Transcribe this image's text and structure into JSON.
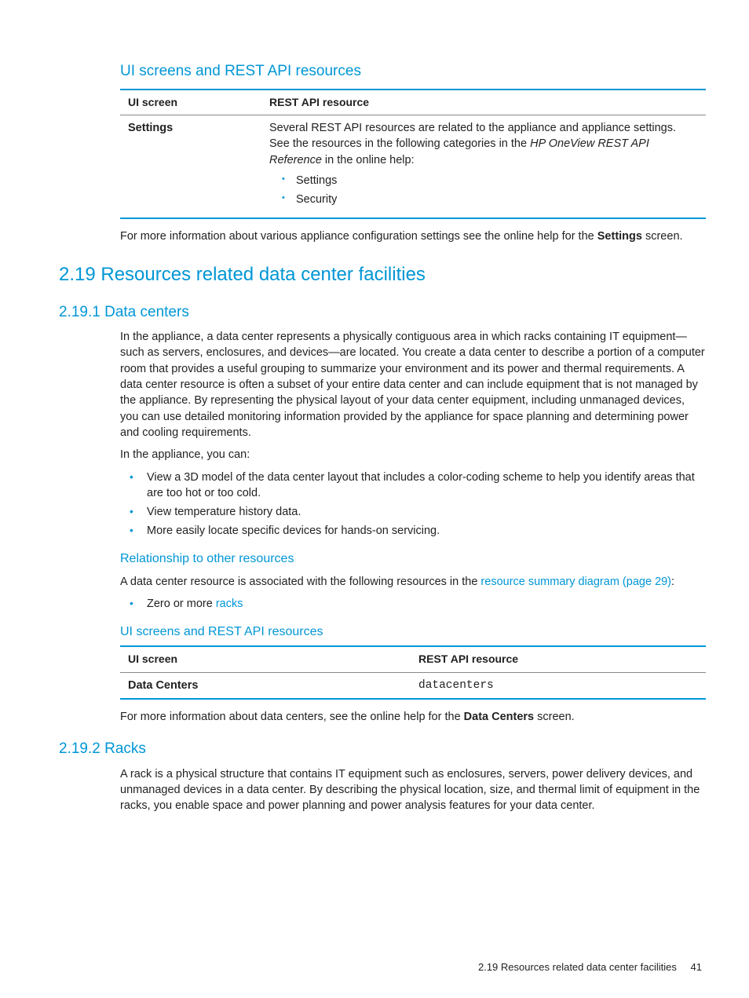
{
  "heading_ui_rest": "UI screens and REST API resources",
  "table1": {
    "col1": "UI screen",
    "col2": "REST API resource",
    "row1_screen": "Settings",
    "row1_desc_1": "Several REST API resources are related to the appliance and appliance settings. See the resources in the following categories in the ",
    "row1_desc_em": "HP OneView REST API Reference",
    "row1_desc_2": " in the online help:",
    "row1_b1": "Settings",
    "row1_b2": "Security"
  },
  "para_after_t1_a": "For more information about various appliance configuration settings see the online help for the ",
  "para_after_t1_b": "Settings",
  "para_after_t1_c": " screen.",
  "h2_219": "2.19 Resources related data center facilities",
  "h3_2191": "2.19.1 Data centers",
  "dc_para1": "In the appliance, a data center represents a physically contiguous area in which racks containing IT equipment—such as servers, enclosures, and devices—are located. You create a data center to describe a portion of a computer room that provides a useful grouping to summarize your environment and its power and thermal requirements. A data center resource is often a subset of your entire data center and can include equipment that is not managed by the appliance. By representing the physical layout of your data center equipment, including unmanaged devices, you can use detailed monitoring information provided by the appliance for space planning and determining power and cooling requirements.",
  "dc_para2": "In the appliance, you can:",
  "dc_b1": "View a 3D model of the data center layout that includes a color-coding scheme to help you identify areas that are too hot or too cold.",
  "dc_b2": "View temperature history data.",
  "dc_b3": "More easily locate specific devices for hands-on servicing.",
  "rel_heading": "Relationship to other resources",
  "rel_p_a": "A data center resource is associated with the following resources in the ",
  "rel_link": "resource summary diagram (page 29)",
  "rel_p_b": ":",
  "rel_b1_a": "Zero or more ",
  "rel_b1_link": "racks",
  "ui_rest_heading2": "UI screens and REST API resources",
  "table2": {
    "col1": "UI screen",
    "col2": "REST API resource",
    "row1_c1": "Data Centers",
    "row1_c2": "datacenters"
  },
  "dc_after_a": "For more information about data centers, see the online help for the ",
  "dc_after_b": "Data Centers",
  "dc_after_c": " screen.",
  "h3_2192": "2.19.2 Racks",
  "racks_p": "A rack is a physical structure that contains IT equipment such as enclosures, servers, power delivery devices, and unmanaged devices in a data center. By describing the physical location, size, and thermal limit of equipment in the racks, you enable space and power planning and power analysis features for your data center.",
  "footer_text": "2.19 Resources related data center facilities",
  "footer_page": "41"
}
